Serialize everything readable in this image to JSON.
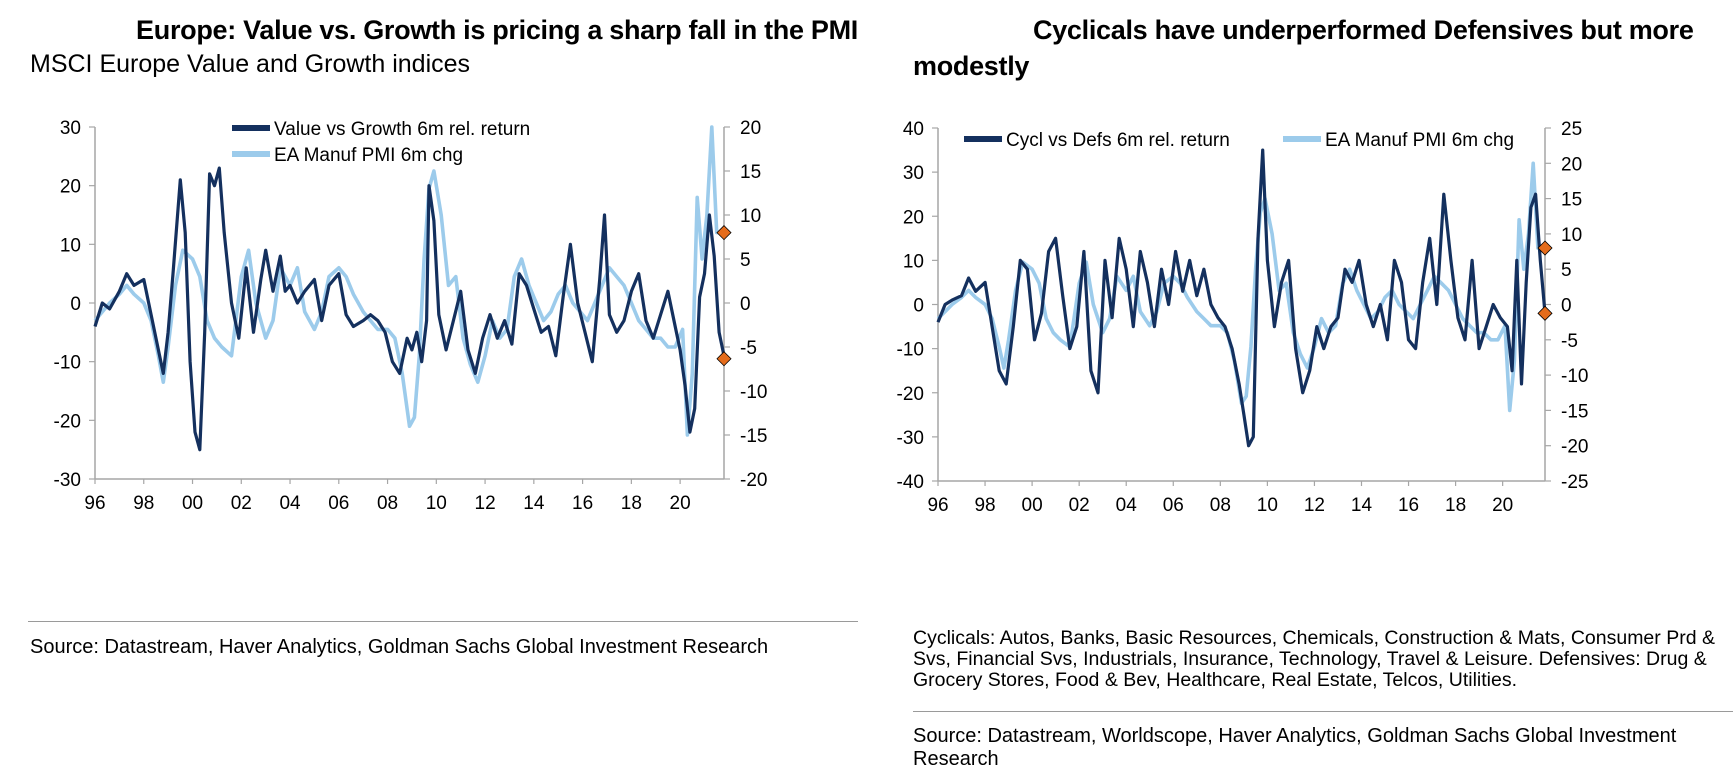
{
  "colors": {
    "dark_series": "#14305e",
    "light_series": "#9ccbeb",
    "marker": "#e46c1c",
    "axis": "#a6a6a6"
  },
  "left": {
    "title": "Europe: Value vs. Growth is pricing a sharp fall in the PMI",
    "subtitle": "MSCI Europe Value and Growth indices",
    "source": "Source: Datastream, Haver Analytics, Goldman Sachs Global Investment Research"
  },
  "right": {
    "title": "Cyclicals have underperformed Defensives but more modestly",
    "note": "Cyclicals: Autos, Banks, Basic Resources, Chemicals, Construction & Mats, Consumer Prd & Svs, Financial Svs, Industrials, Insurance, Technology, Travel & Leisure. Defensives: Drug & Grocery Stores, Food & Bev, Healthcare, Real Estate, Telcos, Utilities.",
    "source": "Source: Datastream, Worldscope, Haver Analytics, Goldman Sachs Global Investment Research"
  },
  "chart_data": [
    {
      "type": "line",
      "title": "Europe: Value vs. Growth is pricing a sharp fall in the PMI",
      "subtitle": "MSCI Europe Value and Growth indices",
      "x_tick_labels": [
        "96",
        "98",
        "00",
        "02",
        "04",
        "06",
        "08",
        "10",
        "12",
        "14",
        "16",
        "18",
        "20"
      ],
      "x_tick_years": [
        1996,
        1998,
        2000,
        2002,
        2004,
        2006,
        2008,
        2010,
        2012,
        2014,
        2016,
        2018,
        2020
      ],
      "xlim": [
        1996,
        2021.8
      ],
      "ylim_left": [
        -30,
        30
      ],
      "ylim_right": [
        -20,
        20
      ],
      "y_ticks_left": [
        30,
        20,
        10,
        0,
        -10,
        -20,
        -30
      ],
      "y_ticks_right": [
        20,
        15,
        10,
        5,
        0,
        -5,
        -10,
        -15,
        -20
      ],
      "legend": "top-center",
      "series": [
        {
          "name": "Value vs Growth 6m rel. return",
          "axis": "left",
          "color": "#14305e",
          "x": [
            1996.0,
            1996.3,
            1996.6,
            1997.0,
            1997.3,
            1997.6,
            1998.0,
            1998.3,
            1998.6,
            1998.8,
            1999.0,
            1999.2,
            1999.5,
            1999.7,
            1999.9,
            2000.1,
            2000.3,
            2000.5,
            2000.7,
            2000.9,
            2001.1,
            2001.3,
            2001.6,
            2001.9,
            2002.2,
            2002.5,
            2002.8,
            2003.0,
            2003.3,
            2003.6,
            2003.8,
            2004.0,
            2004.3,
            2004.6,
            2005.0,
            2005.3,
            2005.6,
            2006.0,
            2006.3,
            2006.6,
            2007.0,
            2007.3,
            2007.6,
            2007.9,
            2008.2,
            2008.5,
            2008.8,
            2009.0,
            2009.2,
            2009.4,
            2009.6,
            2009.7,
            2009.9,
            2010.1,
            2010.4,
            2010.7,
            2011.0,
            2011.3,
            2011.6,
            2011.9,
            2012.2,
            2012.5,
            2012.8,
            2013.1,
            2013.4,
            2013.7,
            2014.0,
            2014.3,
            2014.6,
            2014.9,
            2015.2,
            2015.5,
            2015.8,
            2016.1,
            2016.4,
            2016.7,
            2016.9,
            2017.1,
            2017.4,
            2017.7,
            2018.0,
            2018.3,
            2018.6,
            2018.9,
            2019.2,
            2019.5,
            2019.8,
            2020.0,
            2020.2,
            2020.4,
            2020.6,
            2020.8,
            2021.0,
            2021.2,
            2021.4,
            2021.6,
            2021.8
          ],
          "y": [
            -4,
            0,
            -1,
            2,
            5,
            3,
            4,
            -2,
            -8,
            -12,
            -5,
            5,
            21,
            12,
            -10,
            -22,
            -25,
            -5,
            22,
            20,
            23,
            12,
            0,
            -6,
            6,
            -5,
            4,
            9,
            2,
            8,
            2,
            3,
            0,
            2,
            4,
            -3,
            3,
            5,
            -2,
            -4,
            -3,
            -2,
            -3,
            -5,
            -10,
            -12,
            -6,
            -8,
            -5,
            -10,
            -3,
            20,
            14,
            -2,
            -8,
            -3,
            2,
            -8,
            -12,
            -6,
            -2,
            -6,
            -3,
            -7,
            5,
            3,
            -1,
            -5,
            -4,
            -9,
            1,
            10,
            0,
            -5,
            -10,
            4,
            15,
            -2,
            -5,
            -3,
            2,
            5,
            -3,
            -6,
            -2,
            2,
            -4,
            -8,
            -14,
            -22,
            -18,
            1,
            5,
            15,
            8,
            -5,
            -9
          ]
        },
        {
          "name": "EA Manuf PMI 6m chg",
          "axis": "right",
          "color": "#9ccbeb",
          "x": [
            1996.0,
            1996.3,
            1996.6,
            1997.0,
            1997.3,
            1997.6,
            1998.0,
            1998.3,
            1998.6,
            1998.8,
            1999.0,
            1999.3,
            1999.6,
            2000.0,
            2000.3,
            2000.6,
            2000.9,
            2001.2,
            2001.6,
            2002.0,
            2002.3,
            2002.6,
            2003.0,
            2003.3,
            2003.6,
            2004.0,
            2004.3,
            2004.6,
            2005.0,
            2005.3,
            2005.6,
            2006.0,
            2006.3,
            2006.6,
            2007.0,
            2007.3,
            2007.6,
            2008.0,
            2008.3,
            2008.6,
            2008.9,
            2009.1,
            2009.3,
            2009.5,
            2009.7,
            2009.9,
            2010.2,
            2010.5,
            2010.8,
            2011.1,
            2011.4,
            2011.7,
            2012.0,
            2012.3,
            2012.6,
            2012.9,
            2013.2,
            2013.5,
            2013.8,
            2014.1,
            2014.4,
            2014.7,
            2015.0,
            2015.3,
            2015.6,
            2015.9,
            2016.2,
            2016.5,
            2016.8,
            2017.1,
            2017.4,
            2017.7,
            2018.0,
            2018.3,
            2018.6,
            2018.9,
            2019.2,
            2019.5,
            2019.8,
            2020.1,
            2020.3,
            2020.5,
            2020.7,
            2020.9,
            2021.1,
            2021.3,
            2021.5,
            2021.7,
            2021.8
          ],
          "y": [
            -2,
            -1,
            0,
            1,
            2,
            1,
            0,
            -2,
            -6,
            -9,
            -5,
            2,
            6,
            5,
            3,
            -2,
            -4,
            -5,
            -6,
            3,
            6,
            0,
            -4,
            -2,
            4,
            2,
            4,
            -1,
            -3,
            -1,
            3,
            4,
            3,
            1,
            -1,
            -2,
            -3,
            -3,
            -4,
            -8,
            -14,
            -13,
            -6,
            5,
            13,
            15,
            10,
            2,
            3,
            -4,
            -7,
            -9,
            -6,
            -2,
            -4,
            -3,
            3,
            5,
            2,
            0,
            -2,
            -1,
            1,
            2,
            0,
            -1,
            -2,
            0,
            2,
            4,
            3,
            2,
            0,
            -2,
            -3,
            -4,
            -4,
            -5,
            -5,
            -3,
            -15,
            -8,
            12,
            5,
            10,
            20,
            8,
            8,
            8
          ]
        }
      ],
      "end_markers": [
        {
          "series": "Value vs Growth 6m rel. return",
          "x": 2021.8,
          "y": -9.5
        },
        {
          "series": "EA Manuf PMI 6m chg",
          "x": 2021.8,
          "y": 8
        }
      ]
    },
    {
      "type": "line",
      "title": "Cyclicals have underperformed Defensives but more modestly",
      "x_tick_labels": [
        "96",
        "98",
        "00",
        "02",
        "04",
        "06",
        "08",
        "10",
        "12",
        "14",
        "16",
        "18",
        "20"
      ],
      "x_tick_years": [
        1996,
        1998,
        2000,
        2002,
        2004,
        2006,
        2008,
        2010,
        2012,
        2014,
        2016,
        2018,
        2020
      ],
      "xlim": [
        1996,
        2021.8
      ],
      "ylim_left": [
        -40,
        40
      ],
      "ylim_right": [
        -25,
        25
      ],
      "y_ticks_left": [
        40,
        30,
        20,
        10,
        0,
        -10,
        -20,
        -30,
        -40
      ],
      "y_ticks_right": [
        25,
        20,
        15,
        10,
        5,
        0,
        -5,
        -10,
        -15,
        -20,
        -25
      ],
      "legend": "top",
      "series": [
        {
          "name": "Cycl vs Defs 6m rel. return",
          "axis": "left",
          "color": "#14305e",
          "x": [
            1996.0,
            1996.3,
            1996.6,
            1997.0,
            1997.3,
            1997.6,
            1998.0,
            1998.3,
            1998.6,
            1998.9,
            1999.2,
            1999.5,
            1999.8,
            2000.1,
            2000.4,
            2000.7,
            2001.0,
            2001.3,
            2001.6,
            2001.9,
            2002.2,
            2002.5,
            2002.8,
            2003.1,
            2003.4,
            2003.7,
            2004.0,
            2004.3,
            2004.6,
            2004.9,
            2005.2,
            2005.5,
            2005.8,
            2006.1,
            2006.4,
            2006.7,
            2007.0,
            2007.3,
            2007.6,
            2007.9,
            2008.2,
            2008.5,
            2008.8,
            2009.0,
            2009.2,
            2009.4,
            2009.6,
            2009.8,
            2010.0,
            2010.3,
            2010.6,
            2010.9,
            2011.2,
            2011.5,
            2011.8,
            2012.1,
            2012.4,
            2012.7,
            2013.0,
            2013.3,
            2013.6,
            2013.9,
            2014.2,
            2014.5,
            2014.8,
            2015.1,
            2015.4,
            2015.7,
            2016.0,
            2016.3,
            2016.6,
            2016.9,
            2017.2,
            2017.5,
            2017.8,
            2018.1,
            2018.4,
            2018.7,
            2019.0,
            2019.3,
            2019.6,
            2019.9,
            2020.2,
            2020.4,
            2020.6,
            2020.8,
            2021.0,
            2021.2,
            2021.4,
            2021.6,
            2021.8
          ],
          "y": [
            -4,
            0,
            1,
            2,
            6,
            3,
            5,
            -5,
            -15,
            -18,
            -5,
            10,
            8,
            -8,
            -2,
            12,
            15,
            2,
            -10,
            -5,
            12,
            -15,
            -20,
            10,
            -3,
            15,
            8,
            -5,
            12,
            5,
            -5,
            8,
            0,
            12,
            3,
            10,
            2,
            8,
            0,
            -3,
            -5,
            -10,
            -18,
            -25,
            -32,
            -30,
            15,
            35,
            10,
            -5,
            5,
            10,
            -10,
            -20,
            -15,
            -5,
            -10,
            -5,
            -3,
            8,
            5,
            10,
            0,
            -5,
            0,
            -8,
            10,
            5,
            -8,
            -10,
            5,
            15,
            0,
            25,
            10,
            -3,
            -8,
            10,
            -10,
            -5,
            0,
            -3,
            -5,
            -15,
            10,
            -18,
            5,
            22,
            25,
            10,
            -2
          ]
        },
        {
          "name": "EA Manuf PMI 6m chg",
          "axis": "right",
          "color": "#9ccbeb",
          "x": [
            1996.0,
            1996.3,
            1996.6,
            1997.0,
            1997.3,
            1997.6,
            1998.0,
            1998.3,
            1998.6,
            1998.8,
            1999.0,
            1999.3,
            1999.6,
            2000.0,
            2000.3,
            2000.6,
            2000.9,
            2001.2,
            2001.6,
            2002.0,
            2002.3,
            2002.6,
            2003.0,
            2003.3,
            2003.6,
            2004.0,
            2004.3,
            2004.6,
            2005.0,
            2005.3,
            2005.6,
            2006.0,
            2006.3,
            2006.6,
            2007.0,
            2007.3,
            2007.6,
            2008.0,
            2008.3,
            2008.6,
            2008.9,
            2009.1,
            2009.3,
            2009.5,
            2009.7,
            2009.9,
            2010.2,
            2010.5,
            2010.8,
            2011.1,
            2011.4,
            2011.7,
            2012.0,
            2012.3,
            2012.6,
            2012.9,
            2013.2,
            2013.5,
            2013.8,
            2014.1,
            2014.4,
            2014.7,
            2015.0,
            2015.3,
            2015.6,
            2015.9,
            2016.2,
            2016.5,
            2016.8,
            2017.1,
            2017.4,
            2017.7,
            2018.0,
            2018.3,
            2018.6,
            2018.9,
            2019.2,
            2019.5,
            2019.8,
            2020.1,
            2020.3,
            2020.5,
            2020.7,
            2020.9,
            2021.1,
            2021.3,
            2021.5,
            2021.7,
            2021.8
          ],
          "y": [
            -2,
            -1,
            0,
            1,
            2,
            1,
            0,
            -2,
            -6,
            -9,
            -5,
            2,
            6,
            5,
            3,
            -2,
            -4,
            -5,
            -6,
            3,
            6,
            0,
            -4,
            -2,
            4,
            2,
            4,
            -1,
            -3,
            -1,
            3,
            4,
            3,
            1,
            -1,
            -2,
            -3,
            -3,
            -4,
            -8,
            -14,
            -13,
            -6,
            5,
            13,
            15,
            10,
            2,
            3,
            -4,
            -7,
            -9,
            -6,
            -2,
            -4,
            -3,
            3,
            5,
            2,
            0,
            -2,
            -1,
            1,
            2,
            0,
            -1,
            -2,
            0,
            2,
            4,
            3,
            2,
            0,
            -2,
            -3,
            -4,
            -4,
            -5,
            -5,
            -3,
            -15,
            -8,
            12,
            5,
            10,
            20,
            8,
            8,
            8
          ]
        }
      ],
      "end_markers": [
        {
          "series": "Cycl vs Defs 6m rel. return",
          "x": 2021.8,
          "y": -2
        },
        {
          "series": "EA Manuf PMI 6m chg",
          "x": 2021.8,
          "y": 8
        }
      ]
    }
  ]
}
